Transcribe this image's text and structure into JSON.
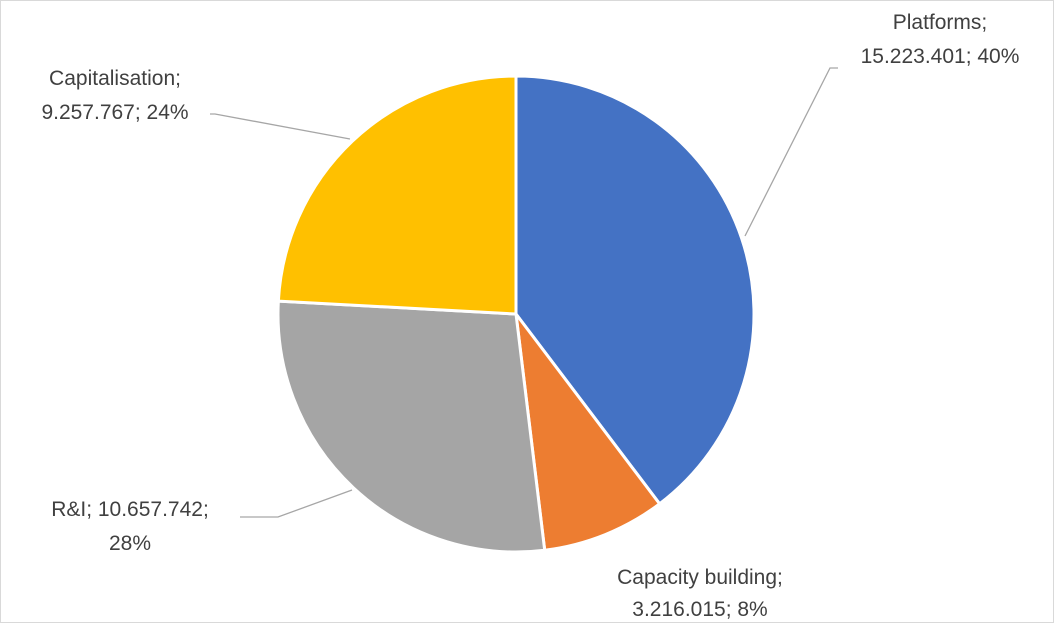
{
  "chart_data": {
    "type": "pie",
    "title": "",
    "slices": [
      {
        "name": "Platforms",
        "value": 15223401,
        "value_label": "15.223.401",
        "percent_label": "40%",
        "color": "#4472C4"
      },
      {
        "name": "Capacity building",
        "value": 3216015,
        "value_label": "3.216.015",
        "percent_label": "8%",
        "color": "#ED7D31"
      },
      {
        "name": "R&I",
        "value": 10657742,
        "value_label": "10.657.742",
        "percent_label": "28%",
        "color": "#A5A5A5"
      },
      {
        "name": "Capitalisation",
        "value": 9257767,
        "value_label": "9.257.767",
        "percent_label": "24%",
        "color": "#FFC000"
      }
    ],
    "labels": [
      {
        "line1": "Platforms;",
        "line2": "15.223.401; 40%"
      },
      {
        "line1": "Capacity building;",
        "line2": "3.216.015; 8%"
      },
      {
        "line1": "R&I; 10.657.742;",
        "line2": "28%"
      },
      {
        "line1": "Capitalisation;",
        "line2": "9.257.767; 24%"
      }
    ],
    "start_angle_deg": 0,
    "direction": "clockwise",
    "legend": "none"
  }
}
